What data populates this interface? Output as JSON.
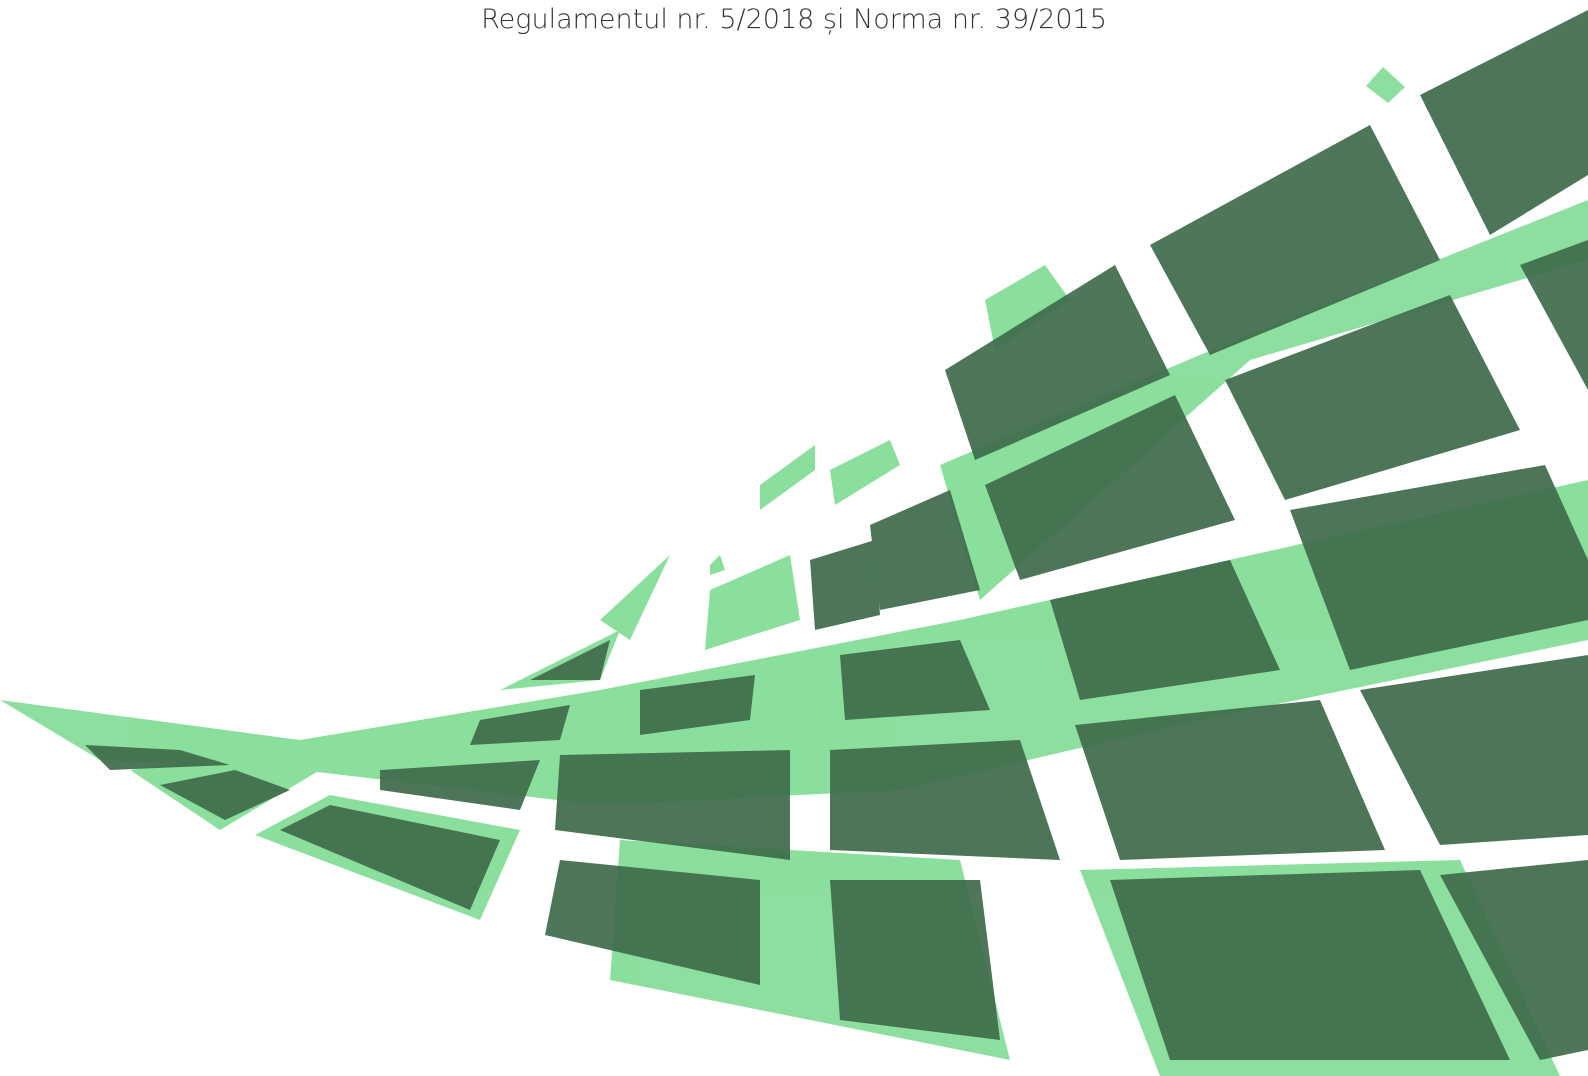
{
  "document": {
    "subtitle": "Regulamentul nr. 5/2018 și Norma nr. 39/2015"
  }
}
